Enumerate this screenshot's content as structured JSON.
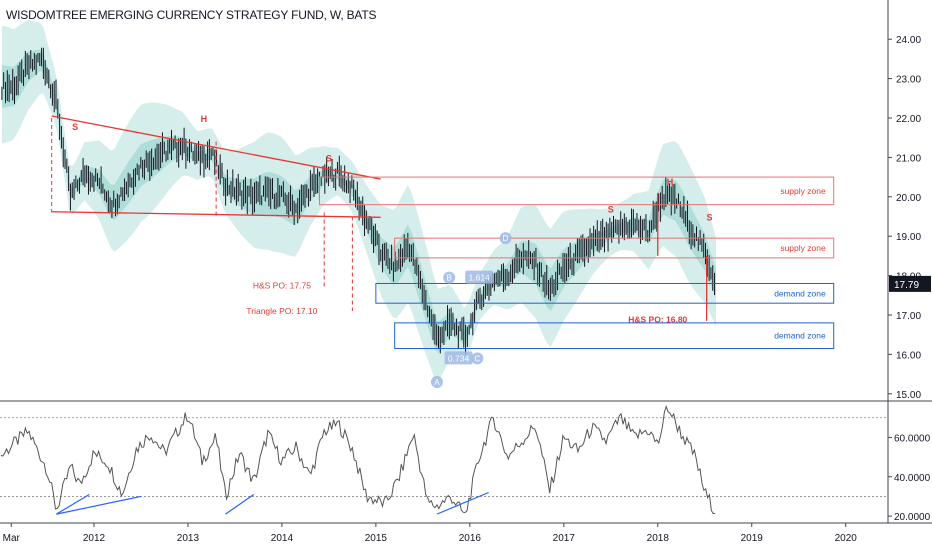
{
  "title": "WISDOMTREE EMERGING CURRENCY STRATEGY FUND, W, BATS",
  "colors": {
    "background": "#ffffff",
    "band": "#b2dfdb",
    "band_dark": "#80cbc4",
    "price": "#131722",
    "annotation_red": "#e53935",
    "supply_box": "#e57373",
    "demand_box": "#1e62d0",
    "rsi_line": "#555555",
    "trend_blue": "#2962ff",
    "axis_text": "#131722",
    "price_tag": "#131722"
  },
  "x_axis": {
    "labels": [
      "Mar",
      "2012",
      "2013",
      "2014",
      "2015",
      "2016",
      "2017",
      "2018",
      "2019",
      "2020"
    ]
  },
  "chart_data": [
    {
      "type": "candlestick",
      "name": "price",
      "y_ticks": [
        "24.00",
        "23.00",
        "22.00",
        "21.00",
        "20.00",
        "19.00",
        "18.00",
        "17.00",
        "16.00",
        "15.00"
      ],
      "ylim": [
        14.6,
        25.0
      ],
      "last_price": "17.79",
      "x": [
        2011.15,
        2011.3,
        2011.45,
        2011.6,
        2011.75,
        2011.9,
        2012.05,
        2012.2,
        2012.35,
        2012.5,
        2012.65,
        2012.8,
        2012.95,
        2013.1,
        2013.25,
        2013.4,
        2013.55,
        2013.7,
        2013.85,
        2014.0,
        2014.15,
        2014.3,
        2014.45,
        2014.6,
        2014.75,
        2014.9,
        2015.05,
        2015.2,
        2015.35,
        2015.5,
        2015.65,
        2015.8,
        2015.95,
        2016.1,
        2016.25,
        2016.4,
        2016.55,
        2016.7,
        2016.85,
        2017.0,
        2017.15,
        2017.3,
        2017.45,
        2017.6,
        2017.75,
        2017.9,
        2018.05,
        2018.2,
        2018.35,
        2018.5,
        2018.62
      ],
      "close": [
        22.8,
        23.3,
        23.5,
        22.4,
        20.0,
        20.6,
        20.4,
        19.8,
        20.3,
        20.8,
        21.0,
        21.2,
        21.3,
        21.0,
        21.1,
        20.3,
        20.1,
        20.0,
        20.1,
        20.0,
        19.7,
        20.2,
        20.5,
        20.6,
        20.2,
        19.4,
        18.6,
        18.2,
        18.8,
        17.6,
        16.4,
        16.8,
        16.4,
        17.4,
        17.9,
        18.0,
        18.5,
        18.3,
        17.6,
        18.2,
        18.5,
        18.8,
        19.0,
        19.2,
        19.3,
        19.1,
        20.0,
        19.9,
        19.2,
        18.6,
        17.79
      ]
    },
    {
      "type": "line",
      "name": "RSI",
      "y_ticks": [
        "60.0000",
        "40.0000",
        "20.0000"
      ],
      "ylim": [
        17,
        78
      ],
      "levels": [
        70,
        30
      ],
      "x": [
        2011.0,
        2011.15,
        2011.3,
        2011.5,
        2011.6,
        2011.75,
        2011.85,
        2012.0,
        2012.15,
        2012.3,
        2012.45,
        2012.6,
        2012.75,
        2012.9,
        2013.0,
        2013.15,
        2013.3,
        2013.4,
        2013.55,
        2013.7,
        2013.85,
        2014.0,
        2014.15,
        2014.3,
        2014.45,
        2014.6,
        2014.75,
        2014.9,
        2015.0,
        2015.1,
        2015.25,
        2015.4,
        2015.55,
        2015.65,
        2015.8,
        2015.95,
        2016.1,
        2016.25,
        2016.4,
        2016.55,
        2016.7,
        2016.85,
        2017.0,
        2017.15,
        2017.3,
        2017.45,
        2017.6,
        2017.75,
        2017.9,
        2018.0,
        2018.1,
        2018.25,
        2018.4,
        2018.5,
        2018.62
      ],
      "y": [
        50,
        57,
        63,
        44,
        23,
        45,
        36,
        52,
        47,
        31,
        54,
        62,
        52,
        64,
        72,
        48,
        60,
        30,
        52,
        37,
        62,
        48,
        55,
        40,
        63,
        67,
        54,
        30,
        28,
        26,
        40,
        62,
        27,
        25,
        30,
        20,
        50,
        70,
        50,
        58,
        66,
        33,
        60,
        53,
        65,
        58,
        70,
        60,
        64,
        56,
        76,
        62,
        50,
        32,
        22
      ]
    }
  ],
  "annotations": {
    "pattern_labels": [
      {
        "text": "S",
        "x": 2011.8,
        "y": 21.7
      },
      {
        "text": "H",
        "x": 2013.17,
        "y": 21.9
      },
      {
        "text": "S",
        "x": 2014.5,
        "y": 20.9
      },
      {
        "text": "S",
        "x": 2017.5,
        "y": 19.6
      },
      {
        "text": "H",
        "x": 2018.13,
        "y": 20.3
      },
      {
        "text": "S",
        "x": 2018.55,
        "y": 19.4
      }
    ],
    "price_targets": [
      {
        "text": "H&S PO: 17.75",
        "x": 2014.0,
        "y": 17.75
      },
      {
        "text": "Triangle PO: 17.10",
        "x": 2014.0,
        "y": 17.1
      },
      {
        "text": "H&S PO: 16.80",
        "x": 2018.0,
        "y": 16.88
      }
    ],
    "zones": [
      {
        "text": "supply zone",
        "kind": "supply",
        "x0": 2014.4,
        "x1": 2020.0,
        "y_low": 19.8,
        "y_high": 20.5
      },
      {
        "text": "supply zone",
        "kind": "supply",
        "x0": 2015.2,
        "x1": 2020.0,
        "y_low": 18.45,
        "y_high": 18.95
      },
      {
        "text": "demand zone",
        "kind": "demand",
        "x0": 2015.0,
        "x1": 2020.0,
        "y_low": 17.3,
        "y_high": 17.8
      },
      {
        "text": "demand zone",
        "kind": "demand",
        "x0": 2015.2,
        "x1": 2020.0,
        "y_low": 16.15,
        "y_high": 16.8
      }
    ],
    "elliott": [
      {
        "text": "A",
        "x": 2015.65,
        "y": 15.3,
        "boxed": false
      },
      {
        "text": "B",
        "x": 2015.78,
        "y": 17.95,
        "boxed": false
      },
      {
        "text": "C",
        "x": 2016.08,
        "y": 15.9,
        "boxed": false
      },
      {
        "text": "D",
        "x": 2016.38,
        "y": 18.95,
        "boxed": false
      },
      {
        "text": "1.614",
        "x": 2016.1,
        "y": 17.95,
        "boxed": true
      },
      {
        "text": "0.734",
        "x": 2015.88,
        "y": 15.9,
        "boxed": true
      }
    ]
  }
}
